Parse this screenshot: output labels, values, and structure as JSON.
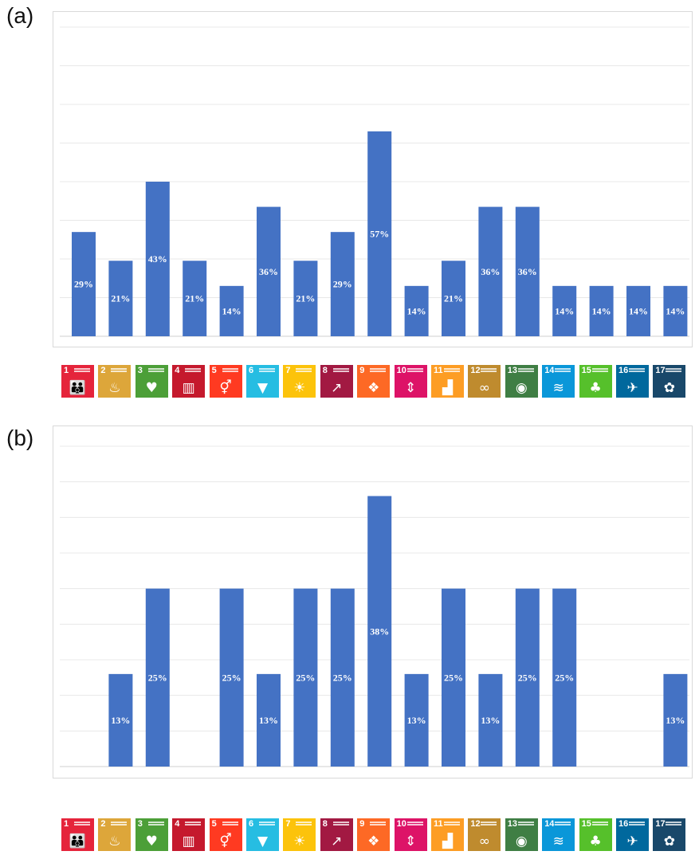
{
  "panels": [
    {
      "label": "(a)"
    },
    {
      "label": "(b)"
    }
  ],
  "chart_data": [
    {
      "type": "bar",
      "categories": [
        "1",
        "2",
        "3",
        "4",
        "5",
        "6",
        "7",
        "8",
        "9",
        "10",
        "11",
        "12",
        "13",
        "14",
        "15",
        "16",
        "17"
      ],
      "values": [
        29,
        21,
        43,
        21,
        14,
        36,
        21,
        29,
        57,
        14,
        21,
        36,
        36,
        14,
        14,
        14,
        14
      ],
      "data_labels": [
        "29%",
        "21%",
        "43%",
        "21%",
        "14%",
        "36%",
        "21%",
        "29%",
        "57%",
        "14%",
        "21%",
        "36%",
        "36%",
        "14%",
        "14%",
        "14%",
        "14%"
      ],
      "ylim": [
        0,
        86
      ],
      "grid": true,
      "bar_color": "#4472C4",
      "title": "",
      "xlabel": "",
      "ylabel": ""
    },
    {
      "type": "bar",
      "categories": [
        "1",
        "2",
        "3",
        "4",
        "5",
        "6",
        "7",
        "8",
        "9",
        "10",
        "11",
        "12",
        "13",
        "14",
        "15",
        "16",
        "17"
      ],
      "values": [
        0,
        13,
        25,
        0,
        25,
        13,
        25,
        25,
        38,
        13,
        25,
        13,
        25,
        25,
        0,
        0,
        13
      ],
      "data_labels": [
        "",
        "13%",
        "25%",
        "",
        "25%",
        "13%",
        "25%",
        "25%",
        "38%",
        "13%",
        "25%",
        "13%",
        "25%",
        "25%",
        "",
        "",
        "13%"
      ],
      "ylim": [
        0,
        45
      ],
      "grid": true,
      "bar_color": "#4472C4",
      "title": "",
      "xlabel": "",
      "ylabel": ""
    }
  ],
  "sdg_icons": [
    {
      "number": "1",
      "color": "#E5243B",
      "icon": "people-icon"
    },
    {
      "number": "2",
      "color": "#DDA63A",
      "icon": "bowl-icon"
    },
    {
      "number": "3",
      "color": "#4C9F38",
      "icon": "heartbeat-icon"
    },
    {
      "number": "4",
      "color": "#C5192D",
      "icon": "book-icon"
    },
    {
      "number": "5",
      "color": "#FF3A21",
      "icon": "gender-icon"
    },
    {
      "number": "6",
      "color": "#26BDE2",
      "icon": "water-drop-icon"
    },
    {
      "number": "7",
      "color": "#FCC30B",
      "icon": "sun-icon"
    },
    {
      "number": "8",
      "color": "#A21942",
      "icon": "growth-chart-icon"
    },
    {
      "number": "9",
      "color": "#FD6925",
      "icon": "cubes-icon"
    },
    {
      "number": "10",
      "color": "#DD1367",
      "icon": "equality-arrows-icon"
    },
    {
      "number": "11",
      "color": "#FD9D24",
      "icon": "buildings-icon"
    },
    {
      "number": "12",
      "color": "#BF8B2E",
      "icon": "infinity-icon"
    },
    {
      "number": "13",
      "color": "#3F7E44",
      "icon": "eye-globe-icon"
    },
    {
      "number": "14",
      "color": "#0A97D9",
      "icon": "fish-icon"
    },
    {
      "number": "15",
      "color": "#56C02B",
      "icon": "tree-icon"
    },
    {
      "number": "16",
      "color": "#00689D",
      "icon": "dove-icon"
    },
    {
      "number": "17",
      "color": "#19486A",
      "icon": "partnership-ring-icon"
    }
  ]
}
